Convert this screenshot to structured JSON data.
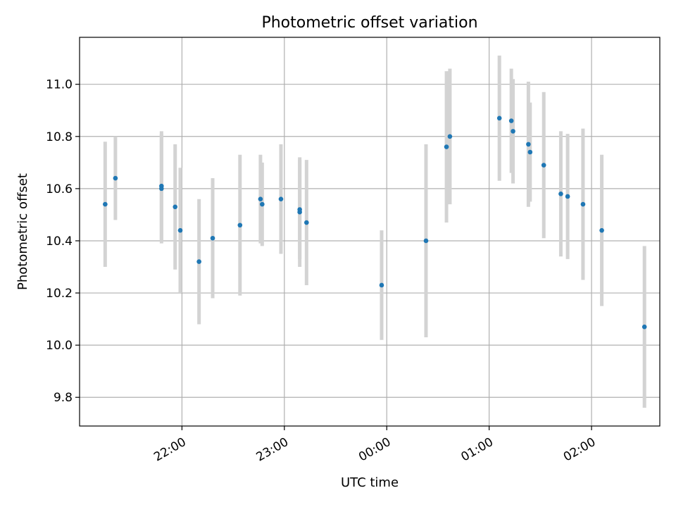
{
  "chart_data": {
    "type": "scatter",
    "title": "Photometric offset variation",
    "xlabel": "UTC time",
    "ylabel": "Photometric offset",
    "grid": true,
    "x_ticks": [
      "22:00",
      "23:00",
      "00:00",
      "01:00",
      "02:00"
    ],
    "y_ticks": [
      "9.8",
      "10.0",
      "10.2",
      "10.4",
      "10.6",
      "10.8",
      "11.0"
    ],
    "xlim": [
      "21:00",
      "02:40"
    ],
    "ylim": [
      9.69,
      11.18
    ],
    "colors": {
      "point": "#1f77b4",
      "errorbar": "#d3d3d3",
      "grid": "#b0b0b0"
    },
    "series": [
      {
        "points": [
          {
            "x": "21:15",
            "y": 10.54,
            "err": 0.24
          },
          {
            "x": "21:21",
            "y": 10.64,
            "err": 0.16
          },
          {
            "x": "21:48",
            "y": 10.61,
            "err": 0.21
          },
          {
            "x": "21:48",
            "y": 10.6,
            "err": 0.21
          },
          {
            "x": "21:56",
            "y": 10.53,
            "err": 0.24
          },
          {
            "x": "21:59",
            "y": 10.44,
            "err": 0.24
          },
          {
            "x": "22:10",
            "y": 10.32,
            "err": 0.24
          },
          {
            "x": "22:18",
            "y": 10.41,
            "err": 0.23
          },
          {
            "x": "22:34",
            "y": 10.46,
            "err": 0.27
          },
          {
            "x": "22:46",
            "y": 10.56,
            "err": 0.17
          },
          {
            "x": "22:47",
            "y": 10.54,
            "err": 0.16
          },
          {
            "x": "22:58",
            "y": 10.56,
            "err": 0.21
          },
          {
            "x": "23:09",
            "y": 10.51,
            "err": 0.21
          },
          {
            "x": "23:09",
            "y": 10.52,
            "err": 0.19
          },
          {
            "x": "23:13",
            "y": 10.47,
            "err": 0.24
          },
          {
            "x": "23:57",
            "y": 10.23,
            "err": 0.21
          },
          {
            "x": "00:23",
            "y": 10.4,
            "err": 0.37
          },
          {
            "x": "00:35",
            "y": 10.76,
            "err": 0.29
          },
          {
            "x": "00:37",
            "y": 10.8,
            "err": 0.26
          },
          {
            "x": "01:06",
            "y": 10.87,
            "err": 0.24
          },
          {
            "x": "01:13",
            "y": 10.86,
            "err": 0.2
          },
          {
            "x": "01:14",
            "y": 10.82,
            "err": 0.2
          },
          {
            "x": "01:23",
            "y": 10.77,
            "err": 0.24
          },
          {
            "x": "01:24",
            "y": 10.74,
            "err": 0.19
          },
          {
            "x": "01:32",
            "y": 10.69,
            "err": 0.28
          },
          {
            "x": "01:42",
            "y": 10.58,
            "err": 0.24
          },
          {
            "x": "01:46",
            "y": 10.57,
            "err": 0.24
          },
          {
            "x": "01:55",
            "y": 10.54,
            "err": 0.29
          },
          {
            "x": "02:06",
            "y": 10.44,
            "err": 0.29
          },
          {
            "x": "02:31",
            "y": 10.07,
            "err": 0.31
          }
        ]
      }
    ]
  }
}
